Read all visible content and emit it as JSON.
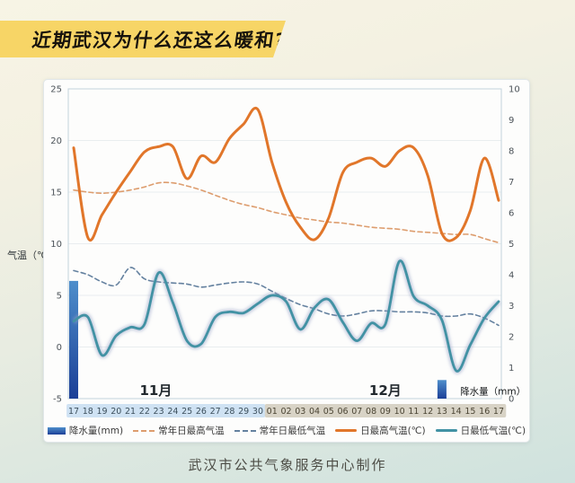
{
  "title": "近期武汉为什么还这么暖和?",
  "footer": "武汉市公共气象服务中心制作",
  "axes": {
    "left_label": "气温（℃）",
    "left_ticks": [
      25,
      20,
      15,
      10,
      5,
      0,
      -5
    ],
    "right_ticks": [
      10,
      9,
      8,
      7,
      6,
      5,
      4,
      3,
      2,
      1,
      0
    ]
  },
  "legend": [
    {
      "key": "precipitation",
      "type": "bar",
      "color": "#2b5cb0",
      "label": "降水量(mm)"
    },
    {
      "key": "normal-max-temp",
      "type": "dashed",
      "color": "#dd9d6e",
      "label": "常年日最高气温"
    },
    {
      "key": "normal-min-temp",
      "type": "dashed",
      "color": "#64819f",
      "label": "常年日最低气温"
    },
    {
      "key": "daily-max-temp",
      "type": "solid",
      "color": "#e1762a",
      "label": "日最高气温(℃)"
    },
    {
      "key": "daily-min-temp",
      "type": "solid",
      "color": "#4292a4",
      "label": "日最低气温(℃)"
    }
  ],
  "chart_data": {
    "type": "line+bar",
    "categories": [
      "17",
      "18",
      "19",
      "20",
      "21",
      "22",
      "23",
      "24",
      "25",
      "26",
      "27",
      "28",
      "29",
      "30",
      "01",
      "02",
      "03",
      "04",
      "05",
      "06",
      "07",
      "08",
      "09",
      "10",
      "11",
      "12",
      "13",
      "14",
      "15",
      "16",
      "17"
    ],
    "months": [
      {
        "label": "11月",
        "start_index": 0,
        "end_index": 13,
        "label_day": 5.8,
        "fill": "#cfe2f3",
        "text_color": "#3c4f5c"
      },
      {
        "label": "12月",
        "start_index": 14,
        "end_index": 30,
        "label_day": 22.0,
        "fill": "#d8d3c6",
        "text_color": "#4b4534"
      }
    ],
    "left_axis": {
      "min": -5,
      "max": 25,
      "title": "气温（℃）"
    },
    "right_axis": {
      "min": 0,
      "max": 10,
      "title": "降水量（mm）",
      "title_day": 29.6
    },
    "series": [
      {
        "key": "precipitation",
        "name": "降水量(mm)",
        "kind": "bar",
        "axis": "right",
        "color_top": "#4e8ecb",
        "color_bottom": "#1b3f97",
        "values": [
          3.8,
          0,
          0,
          0,
          0,
          0,
          0,
          0,
          0,
          0,
          0,
          0,
          0,
          0,
          0,
          0,
          0,
          0,
          0,
          0,
          0,
          0,
          0,
          0,
          0,
          0,
          0.6,
          0,
          0,
          0,
          0
        ]
      },
      {
        "key": "normal-max-temp",
        "name": "常年日最高气温",
        "kind": "line",
        "style": "dashed",
        "color": "#dd9d6e",
        "stroke_width": 1.6,
        "values": [
          15.2,
          15.0,
          14.9,
          15.0,
          15.2,
          15.5,
          15.9,
          15.9,
          15.6,
          15.2,
          14.7,
          14.2,
          13.8,
          13.5,
          13.1,
          12.8,
          12.5,
          12.3,
          12.1,
          12.0,
          11.8,
          11.6,
          11.5,
          11.4,
          11.2,
          11.1,
          11.0,
          10.9,
          10.9,
          10.5,
          10.1
        ]
      },
      {
        "key": "normal-min-temp",
        "name": "常年日最低气温",
        "kind": "line",
        "style": "dashed",
        "color": "#64819f",
        "stroke_width": 1.6,
        "values": [
          7.4,
          7.0,
          6.3,
          6.0,
          7.7,
          6.6,
          6.3,
          6.2,
          6.1,
          5.8,
          6.0,
          6.2,
          6.3,
          6.1,
          5.4,
          4.7,
          4.1,
          3.7,
          3.2,
          3.0,
          3.2,
          3.5,
          3.5,
          3.4,
          3.4,
          3.3,
          3.0,
          3.0,
          3.2,
          2.8,
          2.1
        ]
      },
      {
        "key": "daily-max-temp",
        "name": "日最高气温(℃)",
        "kind": "line",
        "style": "solid",
        "color": "#e1762a",
        "stroke_width": 3,
        "values": [
          19.3,
          10.6,
          12.8,
          15.0,
          17.0,
          18.9,
          19.4,
          19.4,
          16.3,
          18.5,
          17.9,
          20.2,
          21.6,
          23.0,
          17.9,
          14.0,
          11.6,
          10.4,
          12.5,
          16.9,
          17.9,
          18.3,
          17.5,
          19.0,
          19.3,
          16.6,
          11.0,
          10.6,
          13.2,
          18.3,
          14.2
        ]
      },
      {
        "key": "daily-min-temp",
        "name": "日最低气温(℃)",
        "kind": "line",
        "style": "solid",
        "color": "#4292a4",
        "stroke_width": 2.8,
        "glow": true,
        "values": [
          2.5,
          2.9,
          -0.8,
          1.1,
          1.9,
          2.2,
          7.2,
          4.3,
          0.6,
          0.3,
          2.9,
          3.4,
          3.3,
          4.2,
          5.0,
          4.4,
          1.7,
          3.8,
          4.6,
          2.4,
          0.6,
          2.3,
          2.2,
          8.3,
          4.9,
          4.0,
          2.6,
          -2.3,
          0.2,
          2.8,
          4.4
        ]
      }
    ]
  }
}
